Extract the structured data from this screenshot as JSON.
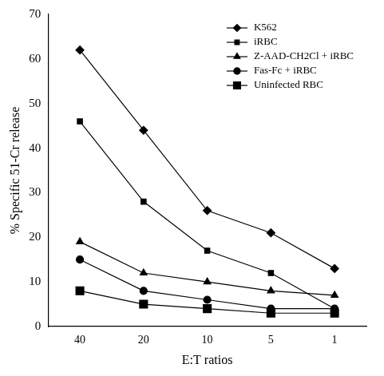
{
  "chart_data": {
    "type": "line",
    "x_label": "E:T ratios",
    "y_label": "% Specific 51-Cr release",
    "categories": [
      "40",
      "20",
      "10",
      "5",
      "1"
    ],
    "series": [
      {
        "name": "K562",
        "color": "#000000",
        "marker": "diamond",
        "values": [
          62,
          44,
          26,
          21,
          13
        ]
      },
      {
        "name": "iRBC",
        "color": "#000000",
        "marker": "square",
        "values": [
          46,
          28,
          17,
          12,
          4
        ]
      },
      {
        "name": "Z-AAD-CH2Cl + iRBC",
        "color": "#000000",
        "marker": "triangle",
        "values": [
          19,
          12,
          10,
          8,
          7
        ]
      },
      {
        "name": "Fas-Fc + iRBC",
        "color": "#000000",
        "marker": "circle",
        "values": [
          15,
          8,
          6,
          4,
          4
        ]
      },
      {
        "name": "Uninfected RBC",
        "color": "#000000",
        "marker": "large_square",
        "values": [
          8,
          5,
          4,
          3,
          3
        ]
      }
    ],
    "ylim": [
      0,
      70
    ],
    "yticks": [
      0,
      10,
      20,
      30,
      40,
      50,
      60,
      70
    ],
    "grid": false,
    "legend": "top-right"
  }
}
